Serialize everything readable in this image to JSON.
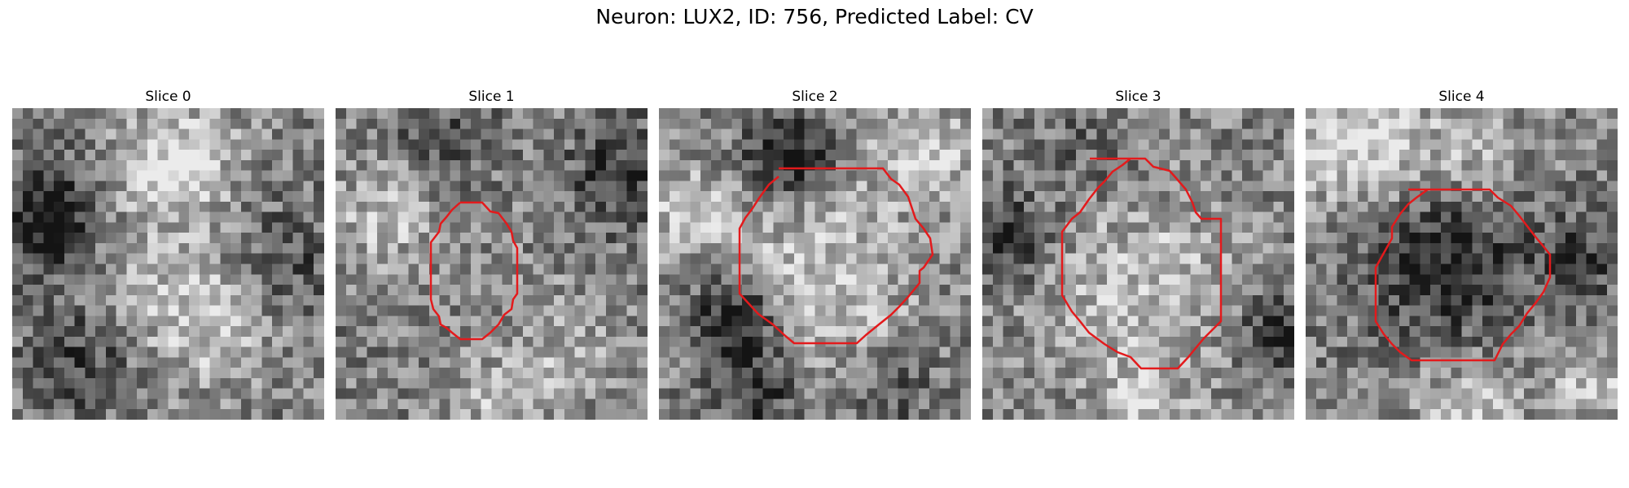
{
  "figure": {
    "title": "Neuron: LUX2, ID: 756, Predicted Label: CV"
  },
  "contour_color": "#e31a1c",
  "colormap": "gray",
  "slices": [
    {
      "title": "Slice 0",
      "has_roi": false
    },
    {
      "title": "Slice 1",
      "has_roi": true
    },
    {
      "title": "Slice 2",
      "has_roi": true
    },
    {
      "title": "Slice 3",
      "has_roi": true
    },
    {
      "title": "Slice 4",
      "has_roi": true
    }
  ]
}
